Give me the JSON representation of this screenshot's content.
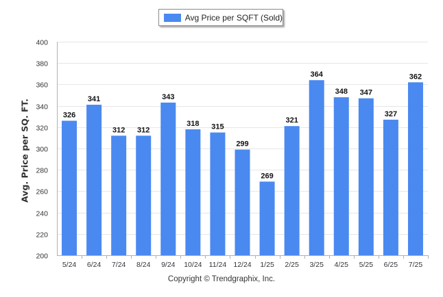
{
  "legend": {
    "label": "Avg Price per SQFT (Sold)"
  },
  "footer": "Copyright © Trendgraphix, Inc.",
  "colors": {
    "bar": "#4a89f0",
    "grid": "#e6e6e6",
    "axis": "#b0b0b0",
    "text": "#333333"
  },
  "chart_data": {
    "type": "bar",
    "title": "",
    "xlabel": "",
    "ylabel": "Avg. Price per SQ. FT.",
    "categories": [
      "5/24",
      "6/24",
      "7/24",
      "8/24",
      "9/24",
      "10/24",
      "11/24",
      "12/24",
      "1/25",
      "2/25",
      "3/25",
      "4/25",
      "5/25",
      "6/25",
      "7/25"
    ],
    "series": [
      {
        "name": "Avg Price per SQFT (Sold)",
        "values": [
          326,
          341,
          312,
          312,
          343,
          318,
          315,
          299,
          269,
          321,
          364,
          348,
          347,
          327,
          362
        ]
      }
    ],
    "ylim": [
      200,
      400
    ],
    "yticks": [
      200,
      220,
      240,
      260,
      280,
      300,
      320,
      340,
      360,
      380,
      400
    ],
    "grid": true,
    "data_labels": true,
    "legend_position": "top-center"
  }
}
